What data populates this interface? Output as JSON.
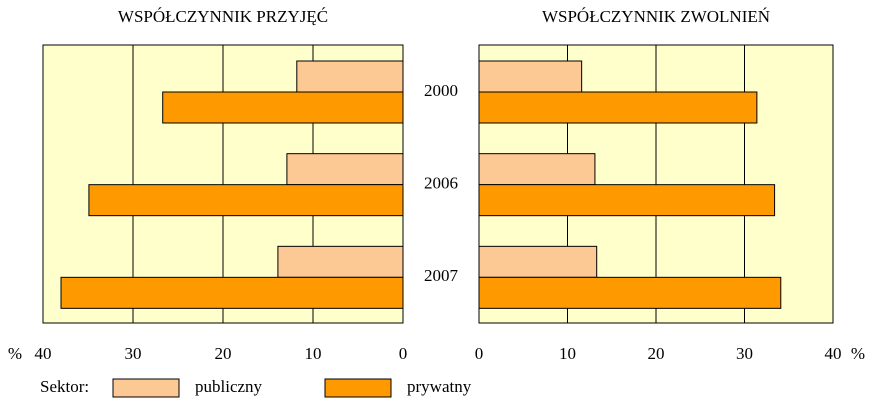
{
  "chart_data": [
    {
      "type": "bar",
      "title": "WSPÓŁCZYNNIK PRZYJĘĆ",
      "xlabel": "%",
      "categories": [
        "2000",
        "2006",
        "2007"
      ],
      "series": [
        {
          "name": "publiczny",
          "color": "#fcc995",
          "values": [
            11.8,
            12.9,
            13.9
          ]
        },
        {
          "name": "prywatny",
          "color": "#ff9900",
          "values": [
            26.7,
            34.9,
            38
          ]
        }
      ],
      "xlim": [
        40,
        0
      ],
      "xticks": [
        40,
        30,
        20,
        10,
        0
      ],
      "grid": true,
      "background": "#ffffcc",
      "legend_title": "Sektor:"
    },
    {
      "type": "bar",
      "title": "WSPÓŁCZYNNIK ZWOLNIEŃ",
      "xlabel": "%",
      "series": [
        {
          "color": "#fcc995",
          "values": [
            11.6,
            13.1,
            13.3
          ]
        },
        {
          "color": "#ff9900",
          "values": [
            31.4,
            33.4,
            34.1
          ]
        }
      ],
      "xlim": [
        0,
        40
      ],
      "xticks": [
        0,
        10,
        20,
        30,
        40
      ],
      "grid": true,
      "background": "#ffffcc"
    }
  ]
}
